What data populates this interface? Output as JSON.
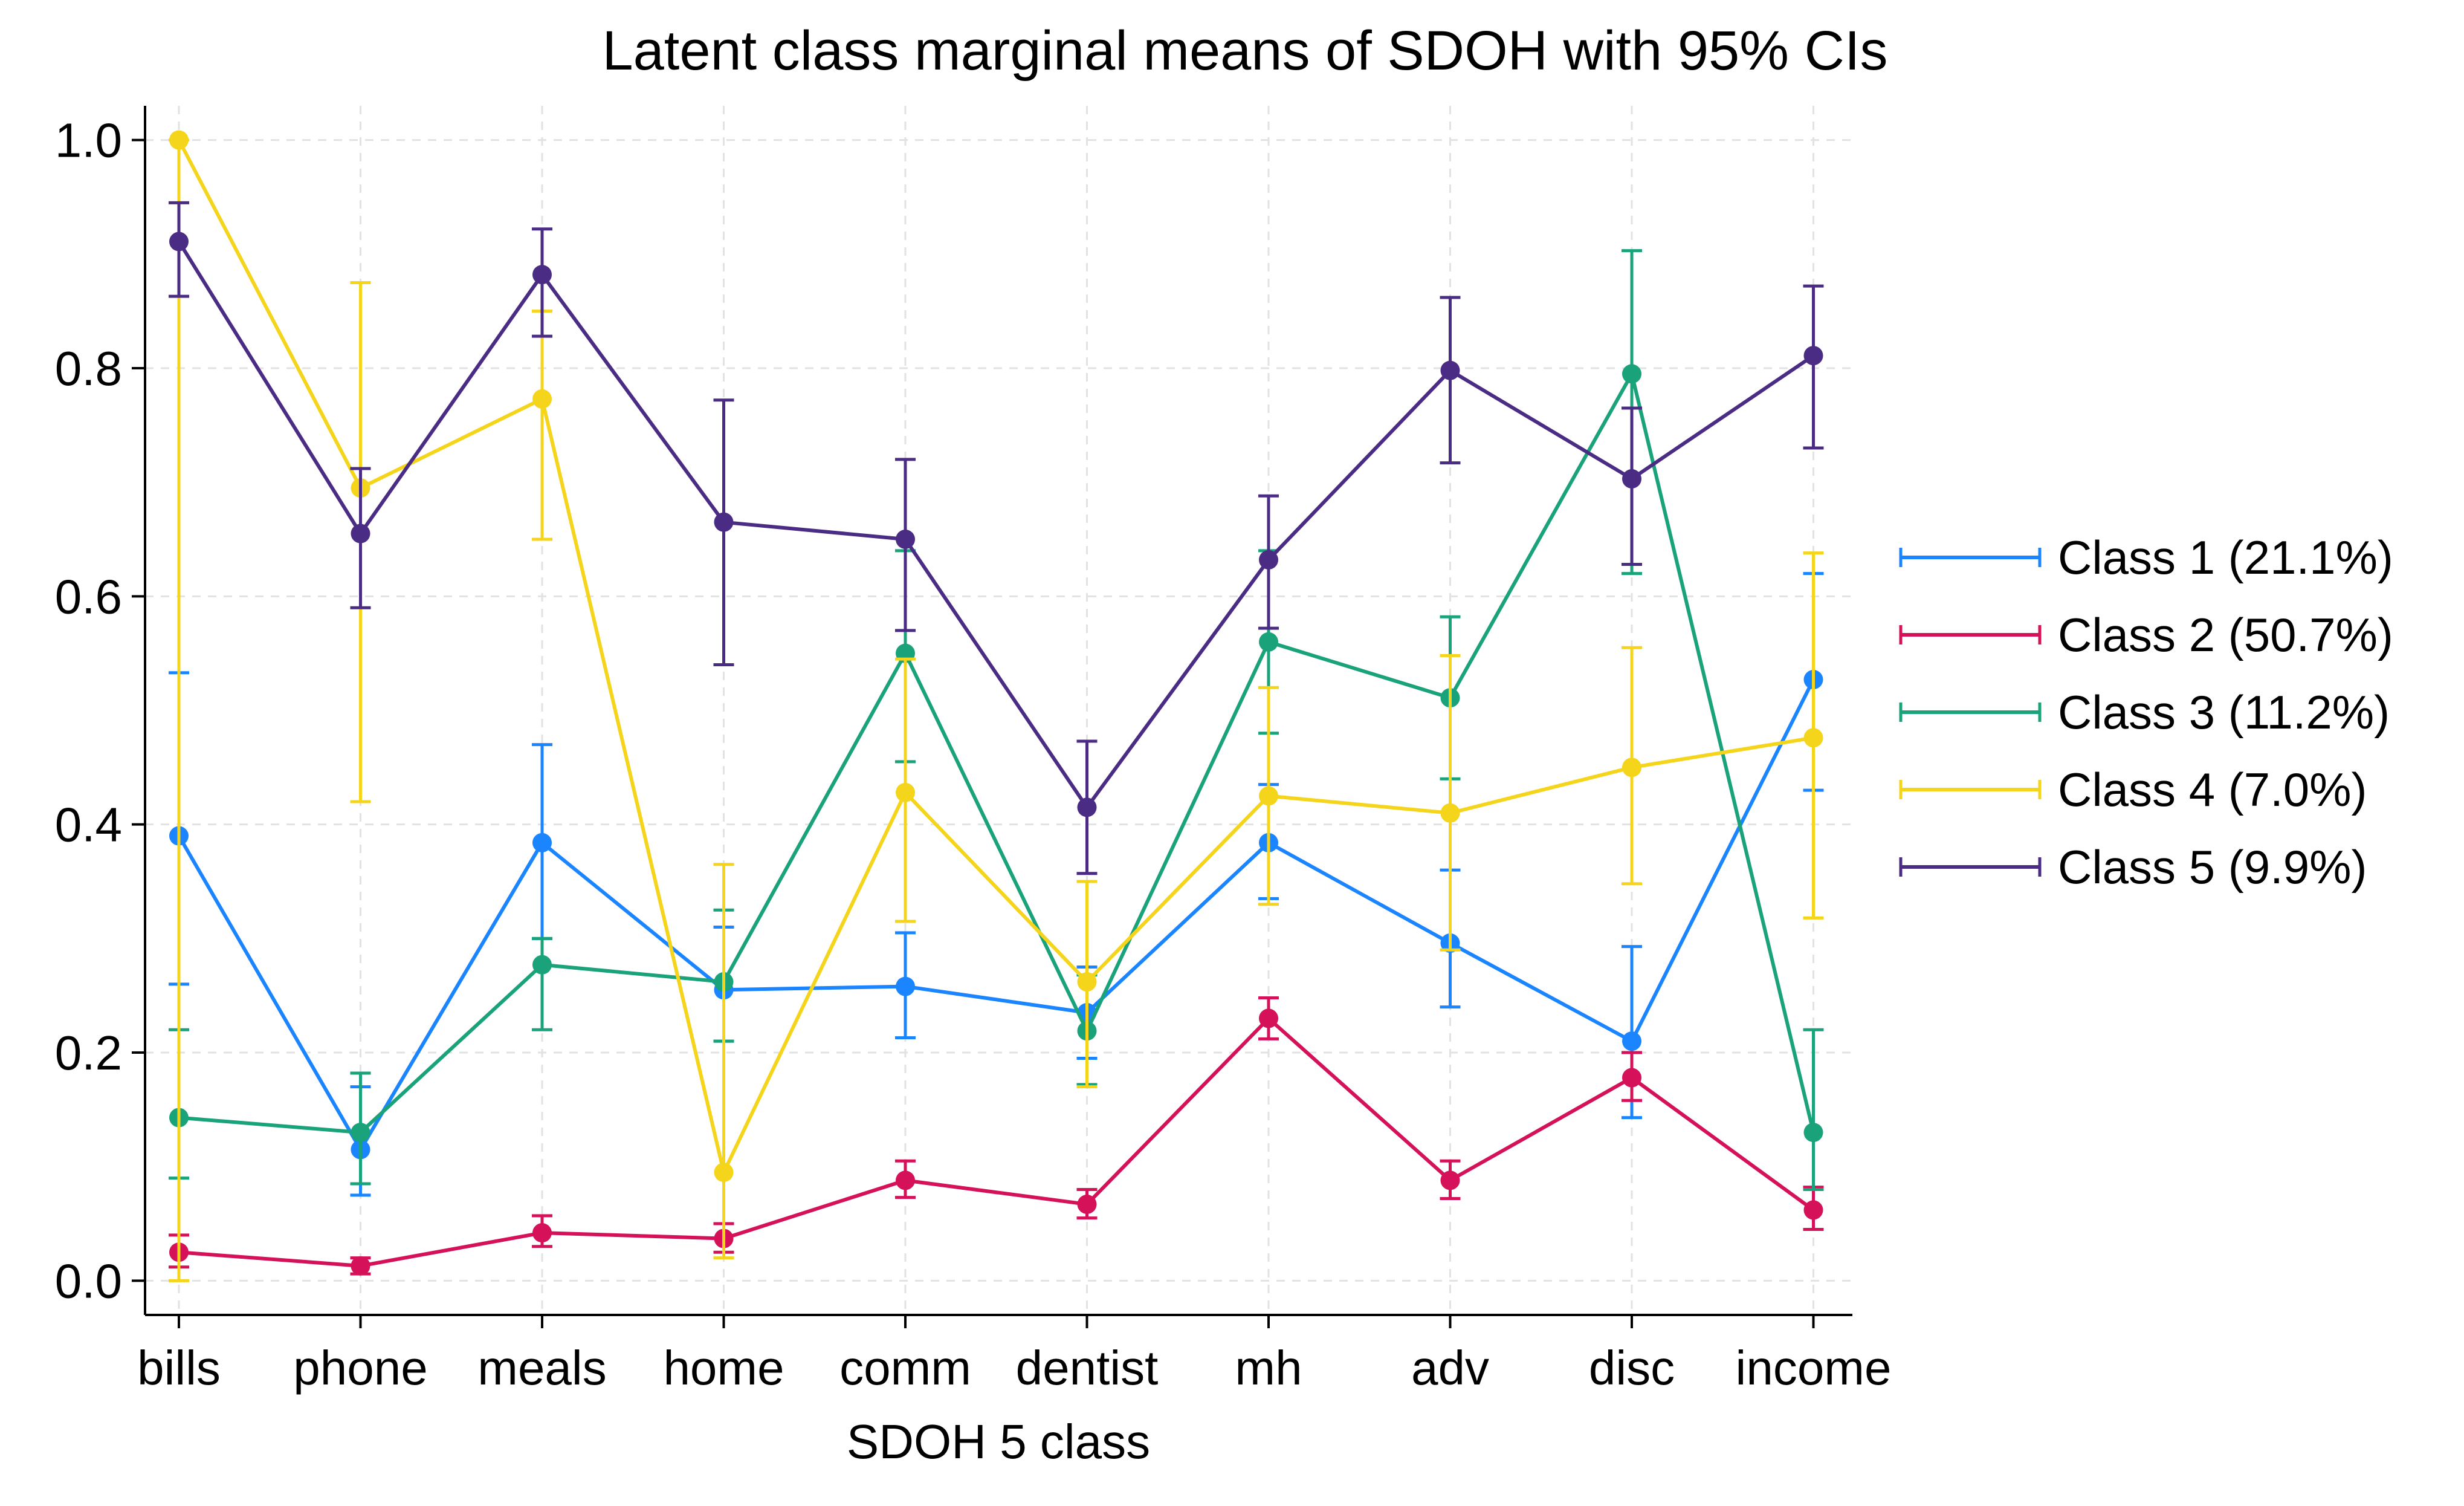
{
  "chart_data": {
    "type": "line",
    "title": "Latent class marginal means of SDOH with 95% CIs",
    "xlabel": "SDOH 5 class",
    "ylabel": "",
    "categories": [
      "bills",
      "phone",
      "meals",
      "home",
      "comm",
      "dentist",
      "mh",
      "adv",
      "disc",
      "income"
    ],
    "ylim": [
      -0.03,
      1.03
    ],
    "yticks": [
      "0.0",
      "0.2",
      "0.4",
      "0.6",
      "0.8",
      "1.0"
    ],
    "grid": true,
    "legend_position": "right",
    "series": [
      {
        "name": "Class 1 (21.1%)",
        "color": "#1a85ff",
        "values": [
          0.39,
          0.115,
          0.384,
          0.255,
          0.258,
          0.235,
          0.384,
          0.296,
          0.21,
          0.527
        ],
        "lower": [
          0.26,
          0.075,
          0.3,
          0.21,
          0.213,
          0.195,
          0.335,
          0.24,
          0.143,
          0.43
        ],
        "upper": [
          0.533,
          0.17,
          0.47,
          0.31,
          0.305,
          0.275,
          0.435,
          0.36,
          0.293,
          0.62
        ]
      },
      {
        "name": "Class 2 (50.7%)",
        "color": "#d41159",
        "values": [
          0.025,
          0.013,
          0.042,
          0.037,
          0.088,
          0.067,
          0.23,
          0.088,
          0.178,
          0.062
        ],
        "lower": [
          0.012,
          0.006,
          0.03,
          0.025,
          0.073,
          0.055,
          0.212,
          0.072,
          0.158,
          0.045
        ],
        "upper": [
          0.04,
          0.02,
          0.057,
          0.05,
          0.105,
          0.08,
          0.248,
          0.105,
          0.2,
          0.082
        ]
      },
      {
        "name": "Class 3 (11.2%)",
        "color": "#1aa37a",
        "values": [
          0.143,
          0.13,
          0.277,
          0.262,
          0.55,
          0.219,
          0.56,
          0.511,
          0.795,
          0.13
        ],
        "lower": [
          0.09,
          0.085,
          0.22,
          0.21,
          0.455,
          0.172,
          0.48,
          0.44,
          0.62,
          0.08
        ],
        "upper": [
          0.22,
          0.182,
          0.3,
          0.325,
          0.64,
          0.268,
          0.64,
          0.582,
          0.903,
          0.22
        ]
      },
      {
        "name": "Class 4 (7.0%)",
        "color": "#f5d51b",
        "values": [
          1.0,
          0.695,
          0.773,
          0.095,
          0.428,
          0.262,
          0.425,
          0.41,
          0.45,
          0.476
        ],
        "lower": [
          0.0,
          0.42,
          0.65,
          0.02,
          0.315,
          0.17,
          0.33,
          0.29,
          0.348,
          0.318
        ],
        "upper": [
          1.0,
          0.875,
          0.85,
          0.365,
          0.545,
          0.35,
          0.52,
          0.548,
          0.555,
          0.638
        ]
      },
      {
        "name": "Class 5 (9.9%)",
        "color": "#4b2c85",
        "values": [
          0.911,
          0.655,
          0.882,
          0.665,
          0.65,
          0.415,
          0.632,
          0.798,
          0.703,
          0.811
        ],
        "lower": [
          0.863,
          0.59,
          0.828,
          0.54,
          0.57,
          0.357,
          0.572,
          0.717,
          0.628,
          0.73
        ],
        "upper": [
          0.945,
          0.712,
          0.922,
          0.772,
          0.72,
          0.473,
          0.688,
          0.862,
          0.765,
          0.872
        ]
      }
    ]
  }
}
